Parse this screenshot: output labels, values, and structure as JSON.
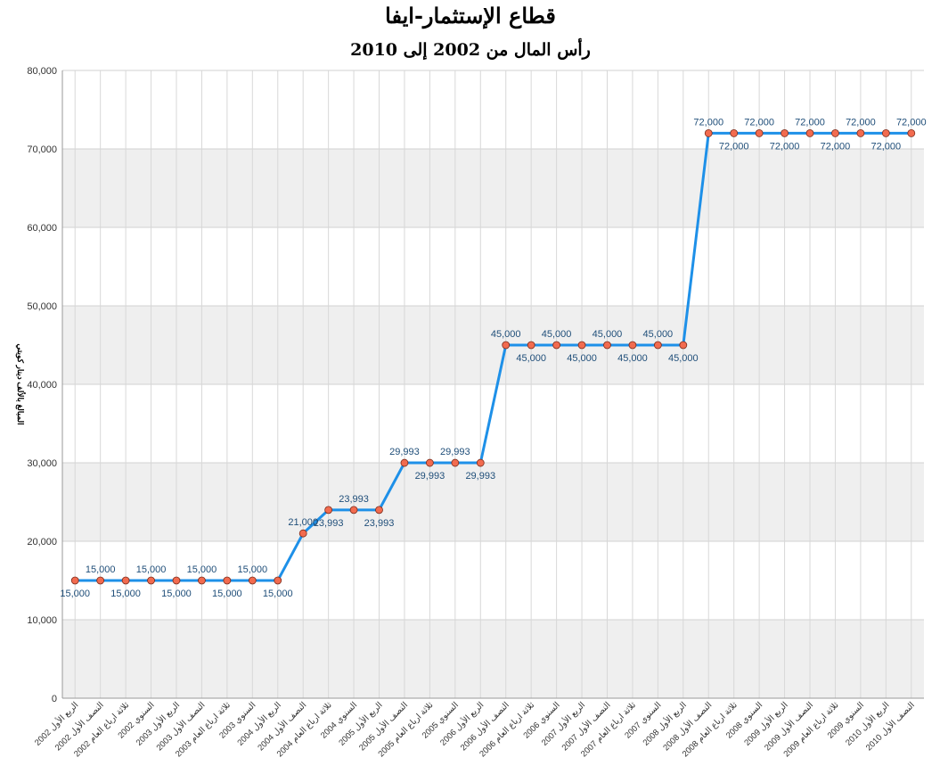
{
  "chart_data": {
    "type": "line",
    "title": "قطاع الإستثمار-ايفا",
    "subtitle": "رأس المال من 2002 إلى 2010",
    "y_label": "المبالغ بالألف دينار كويتي",
    "categories": [
      "الربع الأول 2002",
      "النصف الأول 2002",
      "ثلاثة ارباع العام 2002",
      "السنوي 2002",
      "الربع الأول 2003",
      "النصف الأول 2003",
      "ثلاثة ارباع العام 2003",
      "السنوي 2003",
      "الربع الأول 2004",
      "النصف الأول 2004",
      "ثلاثة ارباع العام 2004",
      "السنوي 2004",
      "الربع الأول 2005",
      "النصف الأول 2005",
      "ثلاثة ارباع العام 2005",
      "السنوي 2005",
      "الربع الأول 2006",
      "النصف الأول 2006",
      "ثلاثة ارباع العام 2006",
      "السنوي 2006",
      "الربع الأول 2007",
      "النصف الأول 2007",
      "ثلاثة ارباع العام 2007",
      "السنوي 2007",
      "الربع الأول 2008",
      "النصف الأول 2008",
      "ثلاثة ارباع العام 2008",
      "السنوي 2008",
      "الربع الأول 2009",
      "النصف الأول 2009",
      "ثلاثة ارباع العام 2009",
      "السنوي 2009",
      "الربع الأول 2010",
      "النصف الأول 2010"
    ],
    "values": [
      15000,
      15000,
      15000,
      15000,
      15000,
      15000,
      15000,
      15000,
      15000,
      21000,
      23993,
      23993,
      23993,
      29993,
      29993,
      29993,
      29993,
      45000,
      45000,
      45000,
      45000,
      45000,
      45000,
      45000,
      45000,
      72000,
      72000,
      72000,
      72000,
      72000,
      72000,
      72000,
      72000,
      72000
    ],
    "value_labels": [
      "15,000",
      "15,000",
      "15,000",
      "15,000",
      "15,000",
      "15,000",
      "15,000",
      "15,000",
      "15,000",
      "21,000",
      "23,993",
      "23,993",
      "23,993",
      "29,993",
      "29,993",
      "29,993",
      "29,993",
      "45,000",
      "45,000",
      "45,000",
      "45,000",
      "45,000",
      "45,000",
      "45,000",
      "45,000",
      "72,000",
      "72,000",
      "72,000",
      "72,000",
      "72,000",
      "72,000",
      "72,000",
      "72,000",
      "72,000"
    ],
    "color": "#1e90e8",
    "marker_color": "#f26b4f",
    "ylim": [
      0,
      80000
    ],
    "yticks": [
      0,
      {
        "value": 10000,
        "label": "10,000"
      },
      {
        "value": 20000,
        "label": "20,000"
      },
      {
        "value": 30000,
        "label": "30,000"
      },
      {
        "value": 40000,
        "label": "40,000"
      },
      {
        "value": 50000,
        "label": "50,000"
      },
      {
        "value": 60000,
        "label": "60,000"
      },
      {
        "value": 70000,
        "label": "70,000"
      },
      {
        "value": 80000,
        "label": "80,000"
      }
    ],
    "grid": true
  }
}
